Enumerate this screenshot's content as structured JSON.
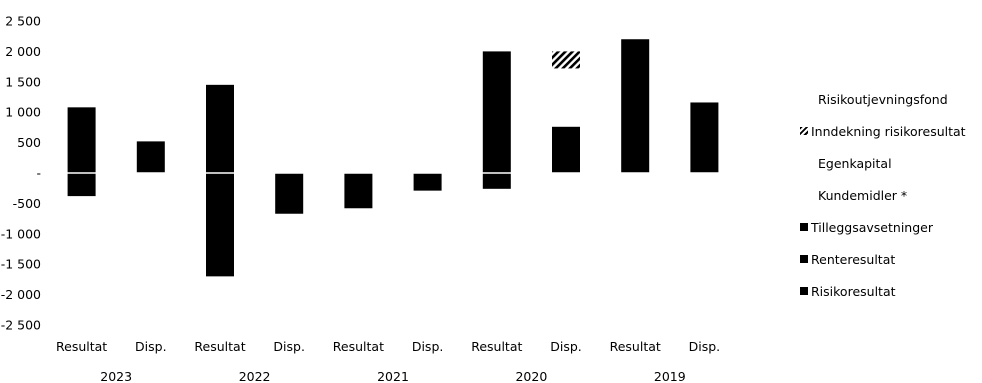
{
  "chart_data": {
    "type": "bar",
    "stacked": true,
    "y_ticks": [
      "2 500",
      "2 000",
      "1 500",
      "1 000",
      "500",
      "-",
      "-500",
      "-1 000",
      "-1 500",
      "-2 000",
      "-2 500"
    ],
    "ylim": [
      -2500,
      2500
    ],
    "grid": false,
    "legend_position": "right",
    "groups": [
      {
        "year": "2023",
        "bars": [
          {
            "label": "Resultat",
            "segments": [
              {
                "series": "Risikoresultat",
                "from": 0,
                "to": 1080
              },
              {
                "series": "Renteresultat",
                "from": -380,
                "to": 0
              }
            ]
          },
          {
            "label": "Disp.",
            "segments": [
              {
                "series": "Egenkapital",
                "from": 0,
                "to": 520
              }
            ]
          }
        ]
      },
      {
        "year": "2022",
        "bars": [
          {
            "label": "Resultat",
            "segments": [
              {
                "series": "Risikoresultat",
                "from": 0,
                "to": 1450
              },
              {
                "series": "Renteresultat",
                "from": -1700,
                "to": 0
              }
            ]
          },
          {
            "label": "Disp.",
            "segments": [
              {
                "series": "Kundemidler *",
                "from": -670,
                "to": 0
              }
            ]
          }
        ]
      },
      {
        "year": "2021",
        "bars": [
          {
            "label": "Resultat",
            "segments": [
              {
                "series": "Renteresultat",
                "from": -580,
                "to": 0
              }
            ]
          },
          {
            "label": "Disp.",
            "segments": [
              {
                "series": "Kundemidler *",
                "from": -290,
                "to": 0
              }
            ]
          }
        ]
      },
      {
        "year": "2020",
        "bars": [
          {
            "label": "Resultat",
            "segments": [
              {
                "series": "Risikoresultat",
                "from": 0,
                "to": 2000
              },
              {
                "series": "Renteresultat",
                "from": -260,
                "to": 0
              }
            ]
          },
          {
            "label": "Disp.",
            "segments": [
              {
                "series": "Egenkapital",
                "from": 0,
                "to": 760
              },
              {
                "series": "Inndekning risikoresultat",
                "from": 1720,
                "to": 2000
              }
            ]
          }
        ]
      },
      {
        "year": "2019",
        "bars": [
          {
            "label": "Resultat",
            "segments": [
              {
                "series": "Risikoresultat",
                "from": 0,
                "to": 2200
              }
            ]
          },
          {
            "label": "Disp.",
            "segments": [
              {
                "series": "Egenkapital",
                "from": 0,
                "to": 1160
              }
            ]
          }
        ]
      }
    ],
    "legend": [
      {
        "label": "Risikoutjevningsfond",
        "marker": "none"
      },
      {
        "label": "Inndekning risikoresultat",
        "marker": "hatched"
      },
      {
        "label": "Egenkapital",
        "marker": "none"
      },
      {
        "label": "Kundemidler *",
        "marker": "none"
      },
      {
        "label": "Tilleggsavsetninger",
        "marker": "solid"
      },
      {
        "label": "Renteresultat",
        "marker": "solid"
      },
      {
        "label": "Risikoresultat",
        "marker": "solid"
      }
    ],
    "colors": {
      "bar": "#000000",
      "zero_line": "#ffffff",
      "text": "#000000"
    }
  }
}
